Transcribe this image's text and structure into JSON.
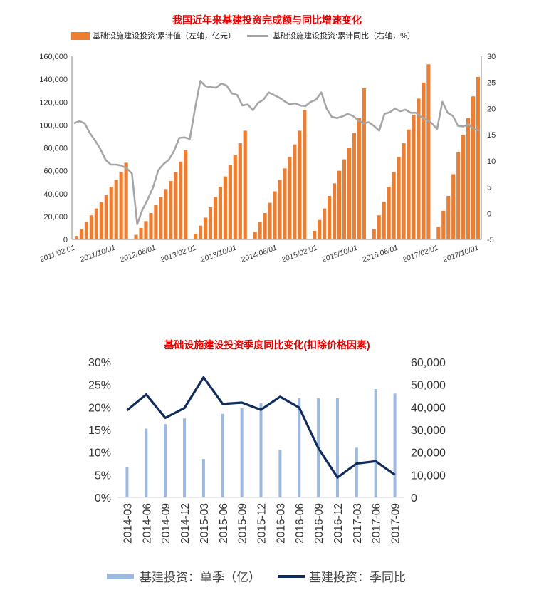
{
  "colors": {
    "bar_orange": "#ED7D31",
    "line_gray": "#A6A6A6",
    "bar_blue": "#9DB9E0",
    "line_navy": "#0F2C5C",
    "title_red": "#E60000"
  },
  "chart_data": [
    {
      "type": "bar",
      "title": "我国近年来基建投资完成额与同比增速变化",
      "series": [
        {
          "name": "基础设施建设投资:累计值（左轴，亿元）",
          "type": "bar",
          "axis": "left"
        },
        {
          "name": "基础设施建设投资:累计同比（右轴，%）",
          "type": "line",
          "axis": "right"
        }
      ],
      "x_tick_labels": [
        "2011/02/01",
        "2011/10/01",
        "2012/06/01",
        "2013/02/01",
        "2013/10/01",
        "2014/06/01",
        "2015/02/01",
        "2015/10/01",
        "2016/06/01",
        "2017/02/01",
        "2017/10/01"
      ],
      "x_start": "2011/02/01",
      "x_end": "2017/10/01",
      "years": [
        {
          "year": 2011,
          "values": [
            3000,
            9000,
            15000,
            21000,
            27000,
            33000,
            39000,
            46000,
            52000,
            59000,
            67000
          ]
        },
        {
          "year": 2012,
          "values": [
            4000,
            10000,
            16000,
            23000,
            30000,
            37000,
            44000,
            51000,
            59000,
            68000,
            78000
          ]
        },
        {
          "year": 2013,
          "values": [
            5000,
            12000,
            19000,
            28000,
            37000,
            46000,
            55000,
            65000,
            74000,
            84000,
            95000
          ]
        },
        {
          "year": 2014,
          "values": [
            6500,
            15000,
            23000,
            32000,
            42000,
            52000,
            62000,
            72000,
            83000,
            95000,
            113000
          ]
        },
        {
          "year": 2015,
          "values": [
            7500,
            17000,
            27000,
            38000,
            49000,
            60000,
            70000,
            80000,
            93000,
            106000,
            132000
          ]
        },
        {
          "year": 2016,
          "values": [
            9000,
            21000,
            33000,
            46000,
            59000,
            72000,
            84000,
            96000,
            109000,
            123000,
            137000,
            153000
          ]
        },
        {
          "year": 2017,
          "values": [
            11000,
            25000,
            38000,
            57000,
            76000,
            91000,
            106000,
            125000,
            142000
          ]
        }
      ],
      "line_values": [
        17.2,
        17.6,
        17.2,
        15.3,
        13.9,
        12.3,
        10.2,
        9.3,
        9.3,
        9.1,
        8.6,
        7.6,
        -2.1,
        0.7,
        2.7,
        4.9,
        8.2,
        9.4,
        10.2,
        11.9,
        14.4,
        14.5,
        14.2,
        20.1,
        25.3,
        24.3,
        24.1,
        24.0,
        24.8,
        24.4,
        22.9,
        22.6,
        20.6,
        20.8,
        19.7,
        21.1,
        21.7,
        23.1,
        22.6,
        22.1,
        21.4,
        20.8,
        21.0,
        20.6,
        20.5,
        21.3,
        21.7,
        23.1,
        20.0,
        18.4,
        18.2,
        18.5,
        19.0,
        18.6,
        17.8,
        17.2,
        17.4,
        16.7,
        15.8,
        19.0,
        19.3,
        20.0,
        19.5,
        19.8,
        19.2,
        19.2,
        18.4,
        17.9,
        17.2,
        16.1,
        21.3,
        19.2,
        18.6,
        16.7,
        16.6,
        17.0,
        16.1,
        15.8
      ],
      "ylim_left": [
        0,
        160000
      ],
      "yticks_left": [
        "0",
        "20,000",
        "40,000",
        "60,000",
        "80,000",
        "100,000",
        "120,000",
        "140,000",
        "160,000"
      ],
      "ylim_right": [
        -5,
        30
      ],
      "yticks_right": [
        "-5",
        "0",
        "5",
        "10",
        "15",
        "20",
        "25",
        "30"
      ],
      "grid": false,
      "legend": "top"
    },
    {
      "type": "bar",
      "title": "基础设施建设投资季度同比变化(扣除价格因素)",
      "categories": [
        "2014-03",
        "2014-06",
        "2014-09",
        "2014-12",
        "2015-03",
        "2015-06",
        "2015-09",
        "2015-12",
        "2016-03",
        "2016-06",
        "2016-09",
        "2016-12",
        "2017-03",
        "2017-06",
        "2017-09"
      ],
      "series": [
        {
          "name": "基建投资：单季（亿）",
          "type": "bar",
          "axis": "right",
          "values": [
            13500,
            30500,
            32500,
            35000,
            17000,
            37000,
            39500,
            42000,
            21000,
            44000,
            44000,
            44000,
            22000,
            48000,
            46000
          ]
        },
        {
          "name": "基建投资：季同比",
          "type": "line",
          "axis": "left",
          "values": [
            19.3,
            22.8,
            17.6,
            19.8,
            26.6,
            20.7,
            21.0,
            19.4,
            22.3,
            19.9,
            10.9,
            4.4,
            7.5,
            8.0,
            5.0
          ]
        }
      ],
      "ylim_left": [
        0,
        30
      ],
      "yticks_left": [
        "0%",
        "5%",
        "10%",
        "15%",
        "20%",
        "25%",
        "30%"
      ],
      "ylim_right": [
        0,
        60000
      ],
      "yticks_right": [
        "0",
        "10,000",
        "20,000",
        "30,000",
        "40,000",
        "50,000",
        "60,000"
      ],
      "grid": false,
      "legend": "bottom"
    }
  ]
}
